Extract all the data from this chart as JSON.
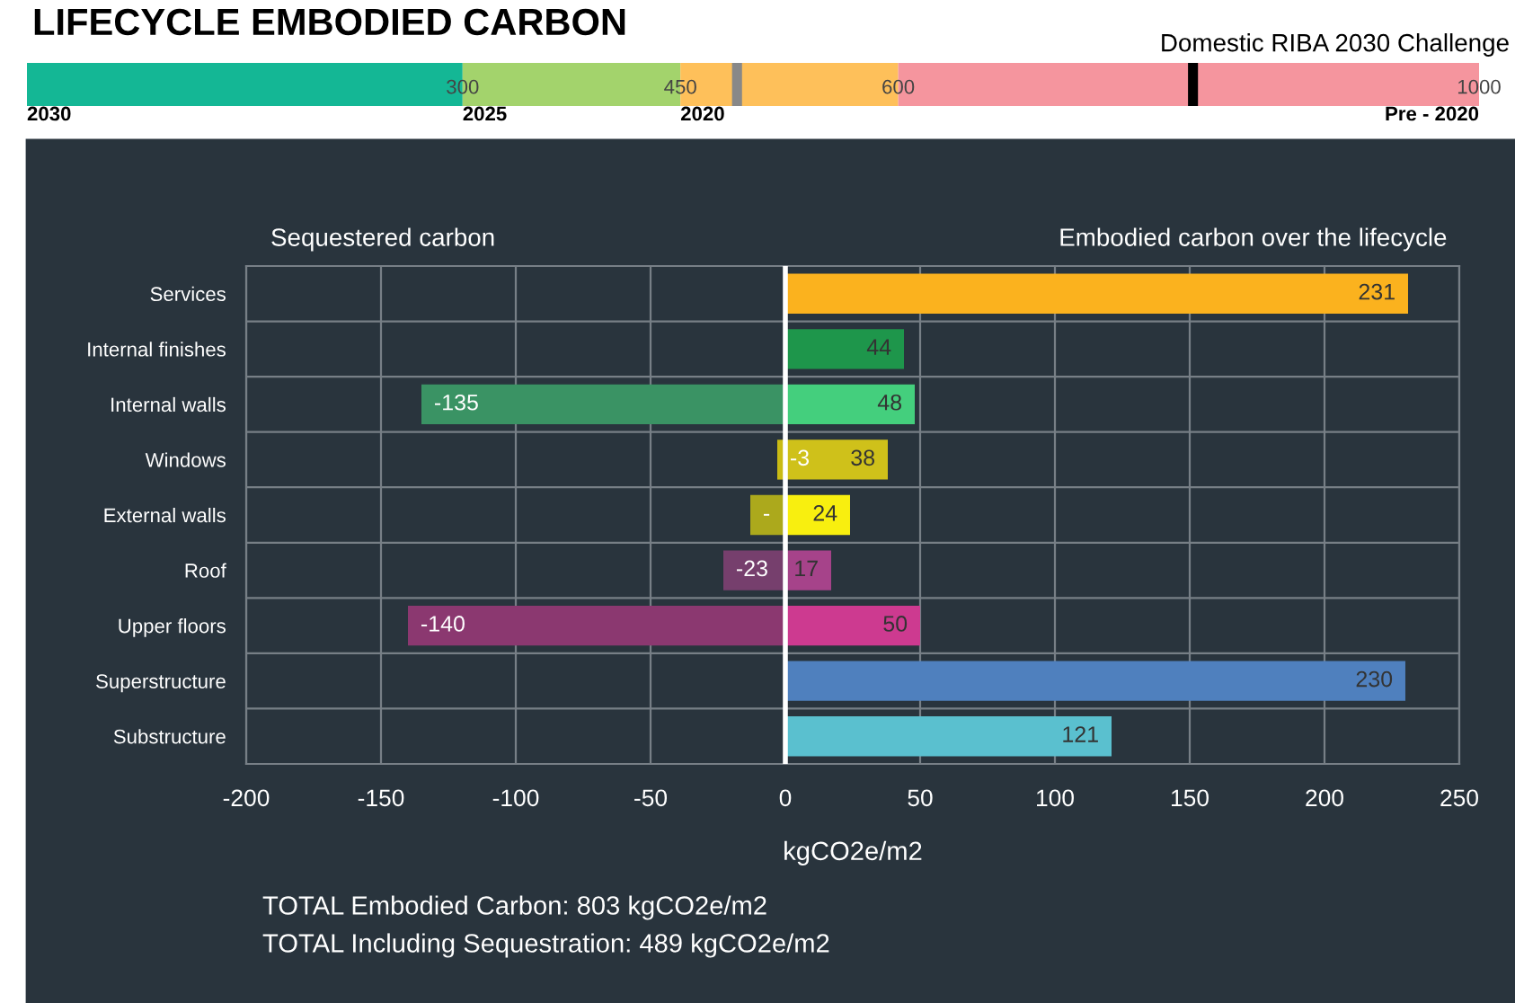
{
  "chart_data": [
    {
      "type": "bar",
      "title": "LIFECYCLE EMBODIED CARBON",
      "subtitle": "Domestic RIBA 2030 Challenge",
      "orientation": "horizontal",
      "categories": [
        null
      ],
      "series": [
        {
          "color": "#14b795",
          "values": [
            300
          ]
        },
        {
          "color": "#a3d36c",
          "values": [
            150
          ]
        },
        {
          "color": "#fec05a",
          "values": [
            150
          ]
        },
        {
          "color": "#f5959e",
          "values": [
            400
          ]
        }
      ],
      "stacked": true,
      "xlim": [
        0,
        1000
      ],
      "xticks": [
        300,
        450,
        600,
        1000
      ],
      "annotations": [
        "2030",
        "2025",
        "2020",
        "Pre - 2020"
      ],
      "ref_lines": [
        {
          "axis": "x",
          "value": 489,
          "color": "#888888"
        },
        {
          "axis": "x",
          "value": 803,
          "color": "#000000"
        }
      ]
    },
    {
      "type": "bar",
      "orientation": "horizontal",
      "categories": [
        "Services",
        "Internal finishes",
        "Internal walls",
        "Windows",
        "External walls",
        "Roof",
        "Upper floors",
        "Superstructure",
        "Substructure"
      ],
      "series": [
        {
          "values": [
            null,
            null,
            -135,
            -3,
            -13,
            -23,
            -140,
            null,
            null
          ],
          "colors": [
            null,
            null,
            "#3a9364",
            "#c9bb14",
            "#aca91c",
            "#763f6d",
            "#8b3870",
            null,
            null
          ],
          "value_labels": [
            null,
            null,
            "-135",
            "-3",
            "-",
            "-23",
            "-140",
            null,
            null
          ]
        },
        {
          "values": [
            231,
            44,
            48,
            38,
            24,
            17,
            50,
            230,
            121
          ],
          "colors": [
            "#fbb21e",
            "#1e964b",
            "#44cf7d",
            "#cfc11a",
            "#f8ef0f",
            "#a6438a",
            "#cd3a90",
            "#4f80be",
            "#5ac0cf"
          ],
          "value_labels": [
            "231",
            "44",
            "48",
            "38",
            "24",
            "17",
            "50",
            "230",
            "121"
          ]
        }
      ],
      "stacked": true,
      "xlim": [
        -200,
        250
      ],
      "xticks": [
        -200,
        -150,
        -100,
        -50,
        0,
        50,
        100,
        150,
        200,
        250
      ],
      "xlabel": "kgCO2e/m2",
      "grid": true,
      "ref_lines": [
        {
          "axis": "x",
          "value": 0,
          "color": "#ffffff"
        }
      ],
      "annotations": [
        "Sequestered carbon",
        "Embodied carbon over the lifecycle",
        "TOTAL Embodied Carbon: 803 kgCO2e/m2",
        "TOTAL Including Sequestration: 489 kgCO2e/m2"
      ]
    }
  ]
}
